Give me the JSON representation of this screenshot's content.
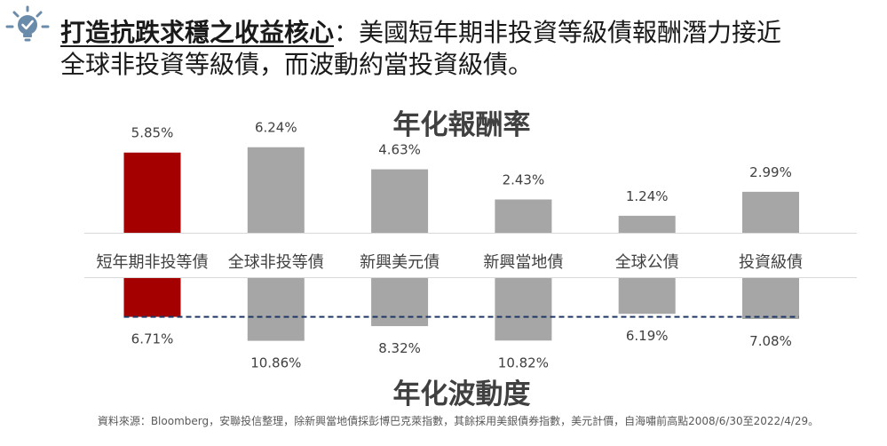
{
  "header": {
    "icon": "lightbulb-check-icon",
    "headline_emphasis": "打造抗跌求穩之收益核心",
    "headline_line1_rest": "：美國短年期非投資等級債報酬潛力接近",
    "headline_line2": "全球非投資等級債，而波動約當投資級債。"
  },
  "colors": {
    "headline_text": "#1a1a1a",
    "icon": "#6b8bab",
    "chart_text": "#404040",
    "axis_line": "#d9d9d9",
    "footnote_text": "#595959"
  },
  "chart_data": {
    "type": "bar",
    "categories": [
      "短年期非投等債",
      "全球非投等債",
      "新興美元債",
      "新興當地債",
      "全球公債",
      "投資級債"
    ],
    "bar_colors": [
      "#a50000",
      "#a6a6a6",
      "#a6a6a6",
      "#a6a6a6",
      "#a6a6a6",
      "#a6a6a6"
    ],
    "series": [
      {
        "name": "年化報酬率",
        "values": [
          5.85,
          6.24,
          4.63,
          2.43,
          1.24,
          2.99
        ],
        "unit": "%",
        "ylim": [
          0,
          7
        ]
      },
      {
        "name": "年化波動度",
        "values": [
          6.71,
          10.86,
          8.32,
          10.82,
          6.19,
          7.08
        ],
        "unit": "%",
        "ylim": [
          0,
          12
        ],
        "reference_line": 6.71
      }
    ],
    "reference_line_color": "#1f3864",
    "grid": false
  },
  "footnote": "資料來源：Bloomberg，安聯投信整理，除新興當地債採彭博巴克萊指數，其餘採用美銀債券指數，美元計價，自海嘯前高點2008/6/30至2022/4/29。"
}
